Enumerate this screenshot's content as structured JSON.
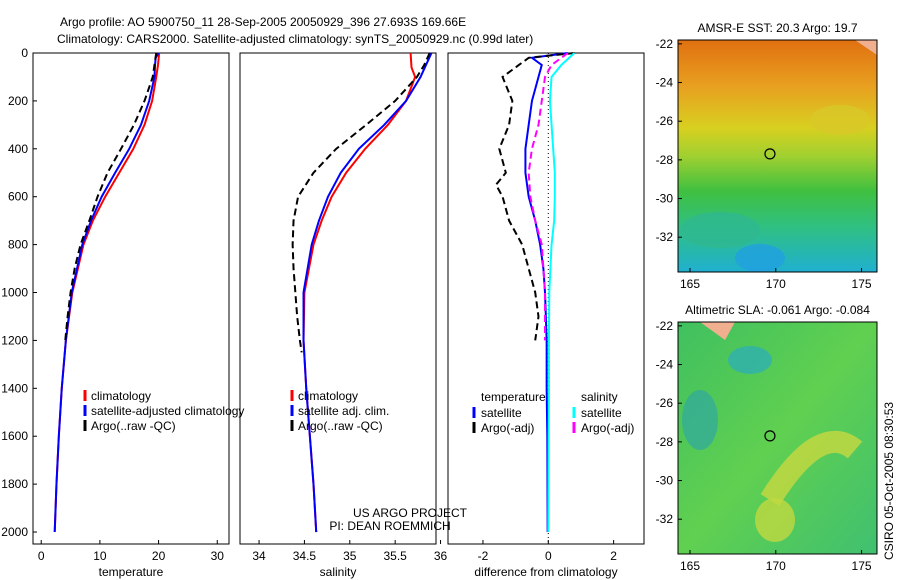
{
  "title_line1": "Argo profile: AO 5900750_11 28-Sep-2005 20050929_396 27.693S 169.66E",
  "title_line2": "Climatology: CARS2000. Satellite-adjusted climatology: synTS_20050929.nc (0.99d later)",
  "side_label": "CSIRO 05-Oct-2005 08:30:53",
  "project_line1": "US ARGO PROJECT",
  "project_line2": "PI: DEAN ROEMMICH",
  "colors": {
    "climatology": "#ff0000",
    "satellite": "#0000ff",
    "argo": "#000000",
    "sal_satellite": "#00ffff",
    "sal_argo": "#ff00ff"
  },
  "chart_data": [
    {
      "type": "line",
      "xlabel": "temperature",
      "xlim": [
        -1.4,
        32
      ],
      "ylim": [
        0,
        2050
      ],
      "y_reversed": true,
      "xticks": [
        0,
        10,
        20,
        30
      ],
      "yticks": [
        0,
        200,
        400,
        600,
        800,
        1000,
        1200,
        1400,
        1600,
        1800,
        2000
      ],
      "legend": [
        "climatology",
        "satellite-adjusted climatology",
        "Argo(..raw -QC)"
      ],
      "series": [
        {
          "name": "climatology",
          "color": "#ff0000",
          "dash": false,
          "depth": [
            0,
            50,
            100,
            200,
            300,
            400,
            500,
            600,
            700,
            800,
            1000,
            1200,
            1400,
            1600,
            1800,
            2000
          ],
          "values": [
            20.1,
            19.9,
            19.6,
            18.9,
            17.6,
            15.7,
            13.3,
            10.9,
            8.8,
            7.2,
            5.3,
            4.2,
            3.5,
            3.0,
            2.6,
            2.3
          ]
        },
        {
          "name": "satellite-adjusted climatology",
          "color": "#0000ff",
          "dash": false,
          "depth": [
            0,
            20,
            50,
            100,
            200,
            300,
            400,
            500,
            600,
            700,
            800,
            1000,
            1200,
            1400,
            1600,
            1800,
            2000
          ],
          "values": [
            20.0,
            19.5,
            19.4,
            19.3,
            18.4,
            17.0,
            15.0,
            12.6,
            10.3,
            8.5,
            7.0,
            5.2,
            4.2,
            3.5,
            3.0,
            2.6,
            2.3
          ]
        },
        {
          "name": "Argo(..raw -QC)",
          "color": "#000000",
          "dash": true,
          "depth": [
            0,
            50,
            100,
            200,
            300,
            400,
            500,
            600,
            700,
            800,
            900,
            1000,
            1100,
            1200
          ],
          "values": [
            19.6,
            19.3,
            19.0,
            17.6,
            15.8,
            13.6,
            11.3,
            9.6,
            8.2,
            6.7,
            5.7,
            5.0,
            4.5,
            4.1
          ]
        }
      ]
    },
    {
      "type": "line",
      "xlabel": "salinity",
      "xlim": [
        33.79,
        35.95
      ],
      "ylim": [
        0,
        2050
      ],
      "y_reversed": true,
      "xticks": [
        34,
        34.5,
        35,
        35.5,
        36
      ],
      "legend": [
        "climatology",
        "satellite adj. clim.",
        "Argo(..raw -QC)"
      ],
      "series": [
        {
          "name": "climatology",
          "color": "#ff0000",
          "dash": false,
          "depth": [
            0,
            60,
            100,
            200,
            300,
            400,
            500,
            600,
            700,
            800,
            1000,
            1200,
            1400,
            1600,
            1800,
            2000
          ],
          "values": [
            35.67,
            35.68,
            35.72,
            35.62,
            35.42,
            35.17,
            34.96,
            34.8,
            34.69,
            34.6,
            34.5,
            34.49,
            34.52,
            34.56,
            34.6,
            34.63
          ]
        },
        {
          "name": "satellite adj. clim.",
          "color": "#0000ff",
          "dash": false,
          "depth": [
            0,
            50,
            100,
            200,
            300,
            400,
            500,
            600,
            700,
            800,
            1000,
            1200,
            1400,
            1600,
            1800,
            2000
          ],
          "values": [
            35.9,
            35.84,
            35.78,
            35.62,
            35.38,
            35.1,
            34.9,
            34.76,
            34.66,
            34.58,
            34.49,
            34.49,
            34.52,
            34.56,
            34.6,
            34.63
          ]
        },
        {
          "name": "Argo(..raw -QC)",
          "color": "#000000",
          "dash": true,
          "depth": [
            0,
            50,
            100,
            200,
            300,
            400,
            500,
            600,
            700,
            800,
            900,
            1000,
            1100,
            1200,
            1250
          ],
          "values": [
            35.88,
            35.82,
            35.74,
            35.5,
            35.18,
            34.85,
            34.6,
            34.43,
            34.38,
            34.37,
            34.38,
            34.4,
            34.42,
            34.45,
            34.47
          ]
        }
      ]
    },
    {
      "type": "line",
      "xlabel": "difference from climatology",
      "xlim": [
        -3.07,
        2.93
      ],
      "ylim": [
        0,
        2050
      ],
      "y_reversed": true,
      "xticks": [
        -2,
        0,
        2
      ],
      "legend_headers": [
        "temperature",
        "salinity"
      ],
      "legend": [
        "satellite",
        "Argo(-adj)",
        "satellite",
        "Argo(-adj)"
      ],
      "series": [
        {
          "name": "temperature satellite",
          "color": "#0000ff",
          "dash": false,
          "depth": [
            0,
            20,
            50,
            100,
            200,
            300,
            400,
            500,
            600,
            700,
            800,
            900,
            1000,
            1200,
            1400,
            1600,
            2000
          ],
          "values": [
            0.6,
            -0.5,
            -0.2,
            -0.3,
            -0.5,
            -0.6,
            -0.7,
            -0.7,
            -0.6,
            -0.4,
            -0.25,
            -0.15,
            -0.1,
            -0.05,
            -0.05,
            -0.03,
            -0.02
          ]
        },
        {
          "name": "temperature Argo(-adj)",
          "color": "#000000",
          "dash": true,
          "depth": [
            0,
            20,
            50,
            100,
            200,
            300,
            400,
            500,
            550,
            600,
            700,
            800,
            900,
            1000,
            1100,
            1200
          ],
          "values": [
            0.8,
            -0.6,
            -0.9,
            -1.4,
            -1.1,
            -1.2,
            -1.5,
            -1.3,
            -1.6,
            -1.4,
            -1.2,
            -0.8,
            -0.6,
            -0.4,
            -0.3,
            -0.4
          ]
        },
        {
          "name": "salinity satellite",
          "color": "#00ffff",
          "dash": false,
          "depth": [
            0,
            50,
            100,
            200,
            300,
            400,
            500,
            600,
            700,
            800,
            1000,
            1200,
            1400,
            1600,
            2000
          ],
          "values": [
            0.8,
            0.4,
            0.1,
            0.05,
            0.1,
            0.15,
            0.2,
            0.2,
            0.18,
            0.1,
            0.03,
            0.02,
            0.02,
            0.01,
            0.0
          ]
        },
        {
          "name": "salinity Argo(-adj)",
          "color": "#ff00ff",
          "dash": true,
          "depth": [
            0,
            50,
            100,
            200,
            300,
            400,
            500,
            600,
            700,
            800,
            900,
            1000,
            1100,
            1200
          ],
          "values": [
            0.6,
            0.1,
            -0.1,
            -0.2,
            -0.3,
            -0.5,
            -0.6,
            -0.55,
            -0.4,
            -0.2,
            -0.15,
            -0.1,
            -0.1,
            -0.1
          ]
        }
      ]
    },
    {
      "type": "heatmap",
      "title": "AMSR-E SST: 20.3 Argo: 19.7",
      "xlim": [
        164.3,
        175.9
      ],
      "ylim": [
        -33.8,
        -21.8
      ],
      "xticks": [
        165,
        170,
        175
      ],
      "yticks": [
        -22,
        -24,
        -26,
        -28,
        -30,
        -32
      ],
      "marker": {
        "lon": 169.66,
        "lat": -27.69
      }
    },
    {
      "type": "heatmap",
      "title": "Altimetric SLA: -0.061 Argo: -0.084",
      "xlim": [
        164.3,
        175.9
      ],
      "ylim": [
        -33.8,
        -21.8
      ],
      "xticks": [
        165,
        170,
        175
      ],
      "yticks": [
        -22,
        -24,
        -26,
        -28,
        -30,
        -32
      ],
      "marker": {
        "lon": 169.66,
        "lat": -27.69
      }
    }
  ]
}
